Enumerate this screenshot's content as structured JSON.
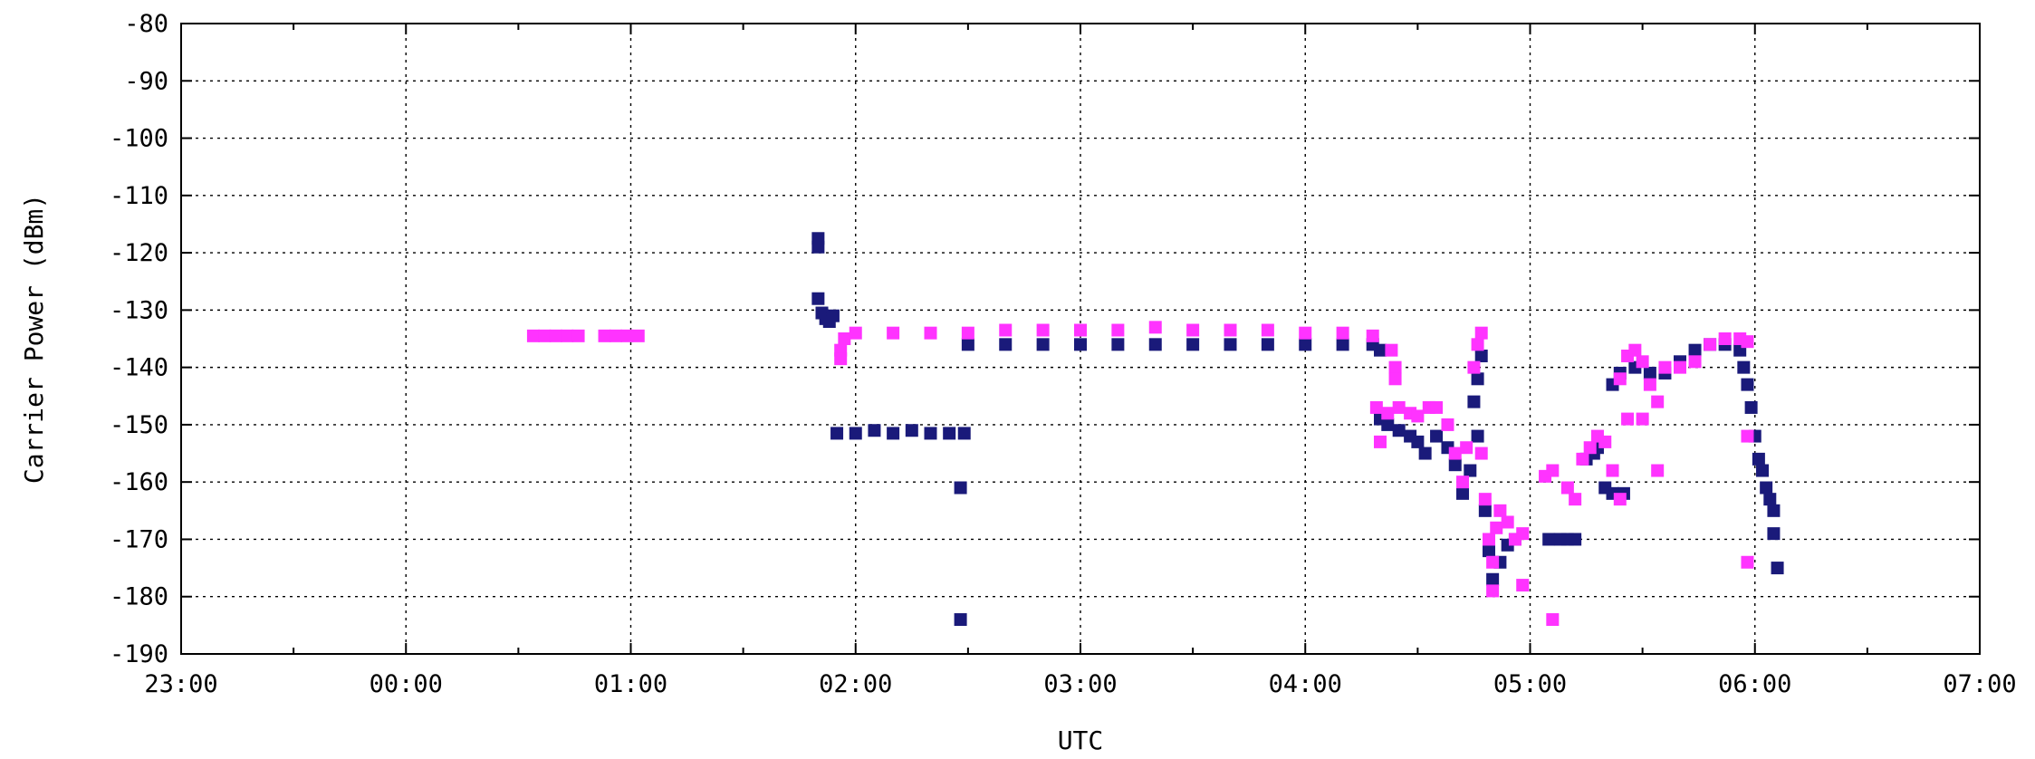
{
  "chart_data": {
    "type": "scatter",
    "title": "",
    "xlabel": "UTC",
    "ylabel": "Carrier Power (dBm)",
    "xlim": [
      "23:00",
      "07:00"
    ],
    "ylim": [
      -190,
      -80
    ],
    "grid": true,
    "x_ticks": [
      "23:00",
      "00:00",
      "01:00",
      "02:00",
      "03:00",
      "04:00",
      "05:00",
      "06:00",
      "07:00"
    ],
    "y_ticks": [
      "-80",
      "-90",
      "-100",
      "-110",
      "-120",
      "-130",
      "-140",
      "-150",
      "-160",
      "-170",
      "-180",
      "-190"
    ],
    "series": [
      {
        "color": "#1a1a7a",
        "points": [
          [
            "01:50",
            -117.5
          ],
          [
            "01:50",
            -119
          ],
          [
            "01:50",
            -128
          ],
          [
            "01:51",
            -130.5
          ],
          [
            "01:52",
            -131.5
          ],
          [
            "01:53",
            -132
          ],
          [
            "01:54",
            -131
          ],
          [
            "01:55",
            -151.5
          ],
          [
            "02:00",
            -151.5
          ],
          [
            "02:05",
            -151
          ],
          [
            "02:10",
            -151.5
          ],
          [
            "02:15",
            -151
          ],
          [
            "02:20",
            -151.5
          ],
          [
            "02:25",
            -151.5
          ],
          [
            "02:29",
            -151.5
          ],
          [
            "02:28",
            -161
          ],
          [
            "02:28",
            -184
          ],
          [
            "02:30",
            -136
          ],
          [
            "02:40",
            -136
          ],
          [
            "02:50",
            -136
          ],
          [
            "03:00",
            -136
          ],
          [
            "03:10",
            -136
          ],
          [
            "03:20",
            -136
          ],
          [
            "03:30",
            -136
          ],
          [
            "03:40",
            -136
          ],
          [
            "03:50",
            -136
          ],
          [
            "04:00",
            -136
          ],
          [
            "04:10",
            -136
          ],
          [
            "04:18",
            -136
          ],
          [
            "04:20",
            -137
          ],
          [
            "04:20",
            -149
          ],
          [
            "04:22",
            -150
          ],
          [
            "04:25",
            -151
          ],
          [
            "04:28",
            -152
          ],
          [
            "04:30",
            -153
          ],
          [
            "04:32",
            -155
          ],
          [
            "04:35",
            -152
          ],
          [
            "04:38",
            -154
          ],
          [
            "04:40",
            -157
          ],
          [
            "04:42",
            -162
          ],
          [
            "04:44",
            -158
          ],
          [
            "04:46",
            -152
          ],
          [
            "04:45",
            -146
          ],
          [
            "04:46",
            -142
          ],
          [
            "04:47",
            -138
          ],
          [
            "04:48",
            -165
          ],
          [
            "04:49",
            -172
          ],
          [
            "04:50",
            -177
          ],
          [
            "04:52",
            -174
          ],
          [
            "04:54",
            -171
          ],
          [
            "04:56",
            -170
          ],
          [
            "05:05",
            -170
          ],
          [
            "05:08",
            -170
          ],
          [
            "05:10",
            -170
          ],
          [
            "05:12",
            -170
          ],
          [
            "05:15",
            -156
          ],
          [
            "05:17",
            -155
          ],
          [
            "05:18",
            -154
          ],
          [
            "05:20",
            -161
          ],
          [
            "05:22",
            -162
          ],
          [
            "05:25",
            -162
          ],
          [
            "05:22",
            -143
          ],
          [
            "05:24",
            -141
          ],
          [
            "05:28",
            -140
          ],
          [
            "05:32",
            -141
          ],
          [
            "05:36",
            -141
          ],
          [
            "05:40",
            -139
          ],
          [
            "05:44",
            -137
          ],
          [
            "05:48",
            -136
          ],
          [
            "05:52",
            -136
          ],
          [
            "05:56",
            -137
          ],
          [
            "05:57",
            -140
          ],
          [
            "05:58",
            -143
          ],
          [
            "05:59",
            -147
          ],
          [
            "06:00",
            -152
          ],
          [
            "06:01",
            -156
          ],
          [
            "06:02",
            -158
          ],
          [
            "06:03",
            -161
          ],
          [
            "06:04",
            -163
          ],
          [
            "06:05",
            -165
          ],
          [
            "06:05",
            -169
          ],
          [
            "06:06",
            -175
          ]
        ]
      },
      {
        "color": "#ff33ff",
        "points": [
          [
            "00:34",
            -134.5
          ],
          [
            "00:37",
            -134.5
          ],
          [
            "00:40",
            -134.5
          ],
          [
            "00:43",
            -134.5
          ],
          [
            "00:46",
            -134.5
          ],
          [
            "00:53",
            -134.5
          ],
          [
            "00:56",
            -134.5
          ],
          [
            "00:59",
            -134.5
          ],
          [
            "01:02",
            -134.5
          ],
          [
            "01:56",
            -137
          ],
          [
            "01:56",
            -138.5
          ],
          [
            "01:57",
            -135
          ],
          [
            "02:00",
            -134
          ],
          [
            "02:10",
            -134
          ],
          [
            "02:20",
            -134
          ],
          [
            "02:30",
            -134
          ],
          [
            "02:40",
            -133.5
          ],
          [
            "02:50",
            -133.5
          ],
          [
            "03:00",
            -133.5
          ],
          [
            "03:10",
            -133.5
          ],
          [
            "03:20",
            -133
          ],
          [
            "03:30",
            -133.5
          ],
          [
            "03:40",
            -133.5
          ],
          [
            "03:50",
            -133.5
          ],
          [
            "04:00",
            -134
          ],
          [
            "04:10",
            -134
          ],
          [
            "04:18",
            -134.5
          ],
          [
            "04:23",
            -137
          ],
          [
            "04:24",
            -140
          ],
          [
            "04:24",
            -142
          ],
          [
            "04:19",
            -147
          ],
          [
            "04:20",
            -153
          ],
          [
            "04:22",
            -148
          ],
          [
            "04:25",
            -147
          ],
          [
            "04:28",
            -148
          ],
          [
            "04:30",
            -148.5
          ],
          [
            "04:33",
            -147
          ],
          [
            "04:35",
            -147
          ],
          [
            "04:38",
            -150
          ],
          [
            "04:40",
            -155
          ],
          [
            "04:42",
            -160
          ],
          [
            "04:43",
            -154
          ],
          [
            "04:45",
            -140
          ],
          [
            "04:46",
            -136
          ],
          [
            "04:47",
            -134
          ],
          [
            "04:47",
            -155
          ],
          [
            "04:48",
            -163
          ],
          [
            "04:49",
            -170
          ],
          [
            "04:50",
            -174
          ],
          [
            "04:50",
            -179
          ],
          [
            "04:51",
            -168
          ],
          [
            "04:52",
            -165
          ],
          [
            "04:54",
            -167
          ],
          [
            "04:56",
            -170
          ],
          [
            "04:58",
            -169
          ],
          [
            "04:58",
            -178
          ],
          [
            "05:04",
            -159
          ],
          [
            "05:06",
            -158
          ],
          [
            "05:06",
            -184
          ],
          [
            "05:10",
            -161
          ],
          [
            "05:12",
            -163
          ],
          [
            "05:14",
            -156
          ],
          [
            "05:16",
            -154
          ],
          [
            "05:18",
            -152
          ],
          [
            "05:20",
            -153
          ],
          [
            "05:22",
            -158
          ],
          [
            "05:24",
            -163
          ],
          [
            "05:24",
            -142
          ],
          [
            "05:26",
            -138
          ],
          [
            "05:28",
            -137
          ],
          [
            "05:30",
            -139
          ],
          [
            "05:32",
            -143
          ],
          [
            "05:34",
            -146
          ],
          [
            "05:36",
            -140
          ],
          [
            "05:40",
            -140
          ],
          [
            "05:44",
            -139
          ],
          [
            "05:48",
            -136
          ],
          [
            "05:52",
            -135
          ],
          [
            "05:56",
            -135
          ],
          [
            "05:58",
            -135.5
          ],
          [
            "05:26",
            -149
          ],
          [
            "05:30",
            -149
          ],
          [
            "05:34",
            -158
          ],
          [
            "05:58",
            -152
          ],
          [
            "05:58",
            -174
          ]
        ]
      }
    ]
  }
}
